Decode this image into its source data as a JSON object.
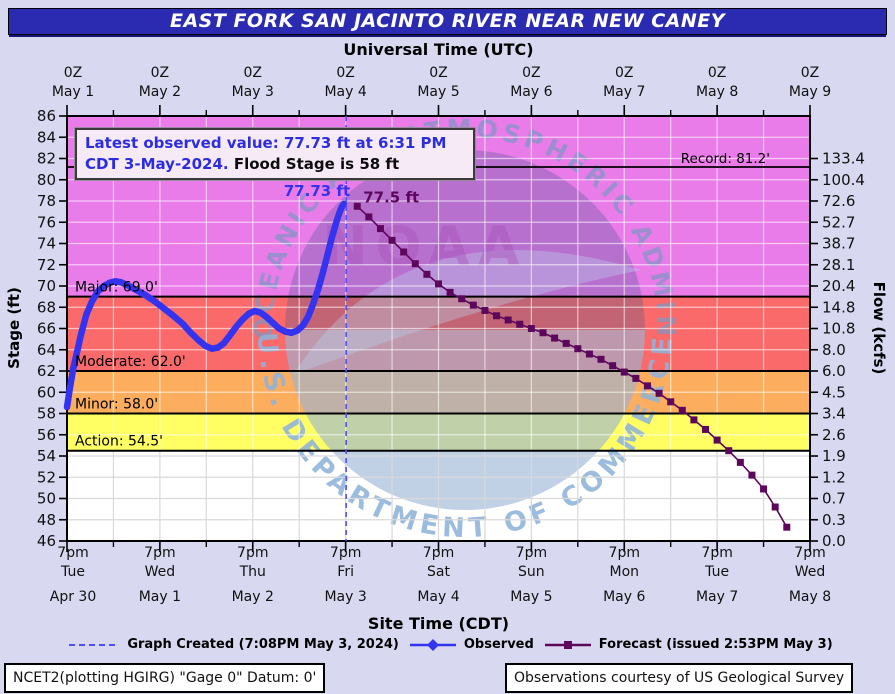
{
  "title": "EAST FORK SAN JACINTO RIVER NEAR NEW CANEY",
  "axes": {
    "top_title": "Universal Time (UTC)",
    "bottom_title": "Site Time (CDT)",
    "left_title": "Stage (ft)",
    "right_title": "Flow (kcfs)",
    "top_ticks": [
      {
        "time": "0Z",
        "date": "May 1"
      },
      {
        "time": "0Z",
        "date": "May 2"
      },
      {
        "time": "0Z",
        "date": "May 3"
      },
      {
        "time": "0Z",
        "date": "May 4"
      },
      {
        "time": "0Z",
        "date": "May 5"
      },
      {
        "time": "0Z",
        "date": "May 6"
      },
      {
        "time": "0Z",
        "date": "May 7"
      },
      {
        "time": "0Z",
        "date": "May 8"
      },
      {
        "time": "0Z",
        "date": "May 9"
      }
    ],
    "bottom_ticks": [
      {
        "time": "7pm",
        "day": "Tue",
        "date": "Apr 30"
      },
      {
        "time": "7pm",
        "day": "Wed",
        "date": "May 1"
      },
      {
        "time": "7pm",
        "day": "Thu",
        "date": "May 2"
      },
      {
        "time": "7pm",
        "day": "Fri",
        "date": "May 3"
      },
      {
        "time": "7pm",
        "day": "Sat",
        "date": "May 4"
      },
      {
        "time": "7pm",
        "day": "Sun",
        "date": "May 5"
      },
      {
        "time": "7pm",
        "day": "Mon",
        "date": "May 6"
      },
      {
        "time": "7pm",
        "day": "Tue",
        "date": "May 7"
      },
      {
        "time": "7pm",
        "day": "Wed",
        "date": "May 8"
      }
    ],
    "left_ticks": [
      86,
      84,
      82,
      80,
      78,
      76,
      74,
      72,
      70,
      68,
      66,
      64,
      62,
      60,
      58,
      56,
      54,
      52,
      50,
      48,
      46
    ],
    "right_ticks": [
      "133.4",
      "100.4",
      "72.6",
      "52.7",
      "38.7",
      "28.1",
      "20.4",
      "14.8",
      "10.8",
      "8.0",
      "6.0",
      "4.5",
      "3.4",
      "2.6",
      "1.9",
      "1.2",
      "0.7",
      "0.3",
      "0.0"
    ]
  },
  "annotation": {
    "line1": "Latest observed value: 77.73 ft at 6:31 PM",
    "line2_blue": "CDT 3-May-2024.",
    "line2_black": " Flood Stage is 58 ft"
  },
  "labels": {
    "record": "Record: 81.2'",
    "major": "Major: 69.0'",
    "moderate": "Moderate: 62.0'",
    "minor": "Minor: 58.0'",
    "action": "Action: 54.5'",
    "peak_observed": "77.73 ft",
    "peak_forecast": "77.5 ft"
  },
  "legend": [
    {
      "name": "graph-created",
      "label": "Graph Created (7:08PM May 3, 2024)"
    },
    {
      "name": "observed",
      "label": "Observed"
    },
    {
      "name": "forecast",
      "label": "Forecast (issued 2:53PM May 3)"
    }
  ],
  "watermark": {
    "top_text": "NATIONAL OCEANIC AND ATMOSPHERIC ADMINISTRATION",
    "bottom_text": "U.S. DEPARTMENT OF COMMERCE",
    "center_text": "NOAA"
  },
  "footer": {
    "left": "NCET2(plotting HGIRG) \"Gage 0\" Datum: 0'",
    "right": "Observations courtesy of US Geological Survey"
  },
  "colors": {
    "page_bg": "#d8d9f1",
    "banner_bg": "#2b2bb2",
    "band_major": "#ea7cea",
    "band_moderate": "#fa6a6a",
    "band_minor": "#fcae5e",
    "band_action": "#ffff64",
    "band_none": "#ffffff",
    "observed": "#3333f0",
    "forecast": "#5c075c",
    "created_line": "#4d4dff",
    "annotation_blue": "#2d2de0",
    "grid_on_band": "rgba(255,255,255,0.6)",
    "grid_on_white": "#d9d9d9",
    "flood_line": "#000000",
    "watermark_dark": "#47558f",
    "watermark_light": "#b9d6f0",
    "watermark_text": "#8fb3da"
  },
  "chart_data": {
    "type": "line",
    "title": "EAST FORK SAN JACINTO RIVER NEAR NEW CANEY",
    "xlabel": "Site Time (CDT) / Universal Time (UTC)",
    "ylabel_left": "Stage (ft)",
    "ylabel_right": "Flow (kcfs)",
    "x_unit": "hours after 7pm CDT Apr 30 2024 (0Z May 1 UTC)",
    "x_range_hours": [
      0,
      192
    ],
    "stage_axis": {
      "min": 46,
      "max": 86,
      "tick_step": 2
    },
    "flow_ticks_kcfs_for_stage_82_to_46": [
      133.4,
      100.4,
      72.6,
      52.7,
      38.7,
      28.1,
      20.4,
      14.8,
      10.8,
      8.0,
      6.0,
      4.5,
      3.4,
      2.6,
      1.9,
      1.2,
      0.7,
      0.3,
      0.0
    ],
    "flood_categories": {
      "action": 54.5,
      "minor": 58.0,
      "moderate": 62.0,
      "major": 69.0,
      "record": 81.2
    },
    "flood_stage_ft": 58,
    "latest_observed": {
      "stage_ft": 77.73,
      "time": "6:31 PM CDT 3-May-2024"
    },
    "graph_created_t_hours": 72.13,
    "series": [
      {
        "name": "Observed",
        "marker": "circle",
        "points": [
          [
            0,
            58.6
          ],
          [
            0.8,
            60.5
          ],
          [
            1.6,
            62.2
          ],
          [
            2.6,
            63.8
          ],
          [
            3.6,
            65.4
          ],
          [
            5,
            67.3
          ],
          [
            6.5,
            68.6
          ],
          [
            8,
            69.5
          ],
          [
            9.5,
            70.0
          ],
          [
            11,
            70.3
          ],
          [
            12.5,
            70.45
          ],
          [
            14,
            70.35
          ],
          [
            16,
            70.0
          ],
          [
            18,
            69.6
          ],
          [
            20,
            69.2
          ],
          [
            22.5,
            68.6
          ],
          [
            25,
            67.9
          ],
          [
            27.5,
            67.2
          ],
          [
            30,
            66.4
          ],
          [
            32,
            65.6
          ],
          [
            34,
            64.9
          ],
          [
            35.8,
            64.35
          ],
          [
            37.5,
            64.1
          ],
          [
            39,
            64.2
          ],
          [
            40.5,
            64.6
          ],
          [
            42,
            65.3
          ],
          [
            43.8,
            66.2
          ],
          [
            45.5,
            66.9
          ],
          [
            47,
            67.4
          ],
          [
            48.5,
            67.65
          ],
          [
            50,
            67.5
          ],
          [
            51.5,
            67.1
          ],
          [
            53,
            66.6
          ],
          [
            54.8,
            66.0
          ],
          [
            56.5,
            65.7
          ],
          [
            58,
            65.6
          ],
          [
            59.5,
            65.8
          ],
          [
            61,
            66.3
          ],
          [
            62.3,
            67.1
          ],
          [
            63.5,
            68.2
          ],
          [
            64.8,
            69.6
          ],
          [
            66,
            71.1
          ],
          [
            67.2,
            72.8
          ],
          [
            68.4,
            74.5
          ],
          [
            69.5,
            75.9
          ],
          [
            70.4,
            76.9
          ],
          [
            71.1,
            77.5
          ],
          [
            71.5,
            77.73
          ]
        ]
      },
      {
        "name": "Forecast",
        "marker": "square",
        "points": [
          [
            75,
            77.5
          ],
          [
            78,
            76.5
          ],
          [
            81,
            75.4
          ],
          [
            84,
            74.3
          ],
          [
            87,
            73.2
          ],
          [
            90,
            72.1
          ],
          [
            93,
            71.1
          ],
          [
            96,
            70.2
          ],
          [
            99,
            69.4
          ],
          [
            102,
            68.8
          ],
          [
            105,
            68.2
          ],
          [
            108,
            67.7
          ],
          [
            111,
            67.2
          ],
          [
            114,
            66.8
          ],
          [
            117,
            66.4
          ],
          [
            120,
            66.0
          ],
          [
            123,
            65.6
          ],
          [
            126,
            65.1
          ],
          [
            129,
            64.6
          ],
          [
            132,
            64.1
          ],
          [
            135,
            63.6
          ],
          [
            138,
            63.1
          ],
          [
            141,
            62.5
          ],
          [
            144,
            61.9
          ],
          [
            147,
            61.3
          ],
          [
            150,
            60.6
          ],
          [
            153,
            59.9
          ],
          [
            156,
            59.1
          ],
          [
            159,
            58.3
          ],
          [
            162,
            57.4
          ],
          [
            165,
            56.5
          ],
          [
            168,
            55.5
          ],
          [
            171,
            54.5
          ],
          [
            174,
            53.4
          ],
          [
            177,
            52.2
          ],
          [
            180,
            50.9
          ],
          [
            183,
            49.2
          ],
          [
            186,
            47.3
          ]
        ]
      }
    ]
  }
}
